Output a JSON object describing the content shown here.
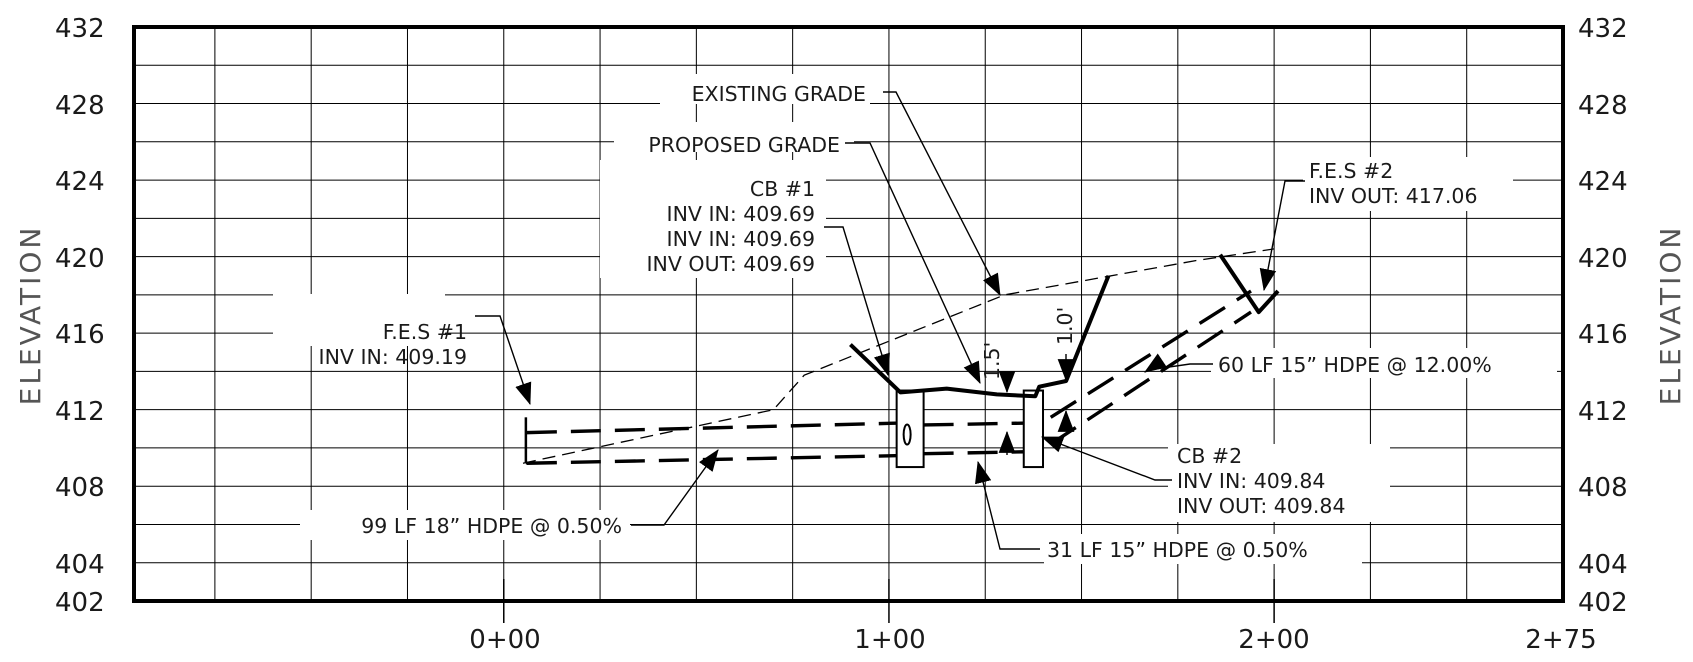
{
  "axes": {
    "left_title": "ELEVATION",
    "right_title": "ELEVATION",
    "elevation_ticks": [
      "432",
      "428",
      "424",
      "420",
      "416",
      "412",
      "408",
      "404",
      "402"
    ],
    "station_ticks": [
      "0+00",
      "1+00",
      "2+00",
      "2+75"
    ],
    "elevation_range": [
      402,
      432
    ],
    "station_range_ft": [
      -96,
      275
    ]
  },
  "profiles": {
    "existing_grade": [
      [
        5,
        409.2
      ],
      [
        70,
        412
      ],
      [
        78,
        413.8
      ],
      [
        130,
        418
      ],
      [
        180,
        419.8
      ],
      [
        200,
        420.4
      ]
    ],
    "proposed_grade": [
      [
        90,
        415.4
      ],
      [
        103,
        412.9
      ],
      [
        115,
        413.1
      ],
      [
        128,
        412.8
      ],
      [
        138,
        412.7
      ],
      [
        139,
        413.2
      ],
      [
        146,
        413.5
      ],
      [
        157,
        419
      ]
    ],
    "proposed_grade_east": [
      [
        186,
        420.1
      ],
      [
        196,
        417.1
      ],
      [
        201,
        418.2
      ]
    ]
  },
  "pipes": [
    {
      "from_sta": 6,
      "to_sta": 103,
      "crown_start": 410.8,
      "crown_end": 411.3,
      "invert_start": 409.2,
      "invert_end": 409.6
    },
    {
      "from_sta": 109,
      "to_sta": 136,
      "crown_start": 411.2,
      "crown_end": 411.3,
      "invert_start": 409.7,
      "invert_end": 409.8
    },
    {
      "from_sta": 142,
      "to_sta": 194,
      "crown_start": 411.6,
      "crown_end": 418.2,
      "invert_start": 410.2,
      "invert_end": 417.1
    }
  ],
  "structures": [
    {
      "name": "CB #1",
      "left_sta": 102,
      "right_sta": 109,
      "top": 413,
      "bottom": 409
    },
    {
      "name": "CB #2",
      "left_sta": 135,
      "right_sta": 140,
      "top": 413,
      "bottom": 409
    }
  ],
  "callouts": {
    "fes1_title": "F.E.S #1",
    "fes1_inv": "INV IN: 409.19",
    "cb1_title": "CB #1",
    "cb1_inv_in_1": "INV IN: 409.69",
    "cb1_inv_in_2": "INV IN: 409.69",
    "cb1_inv_out": "INV OUT: 409.69",
    "existing_grade": "EXISTING GRADE",
    "proposed_grade": "PROPOSED GRADE",
    "fes2_title": "F.E.S #2",
    "fes2_inv": "INV OUT: 417.06",
    "cb2_title": "CB #2",
    "cb2_inv_in": "INV IN: 409.84",
    "cb2_inv_out": "INV OUT: 409.84",
    "pipe_99": "99 LF 18” HDPE @ 0.50%",
    "pipe_31": "31 LF 15” HDPE @ 0.50%",
    "pipe_60": "60 LF 15” HDPE @ 12.00%",
    "cover_1_5": "1.5'",
    "cover_1_0": "1.0'"
  }
}
